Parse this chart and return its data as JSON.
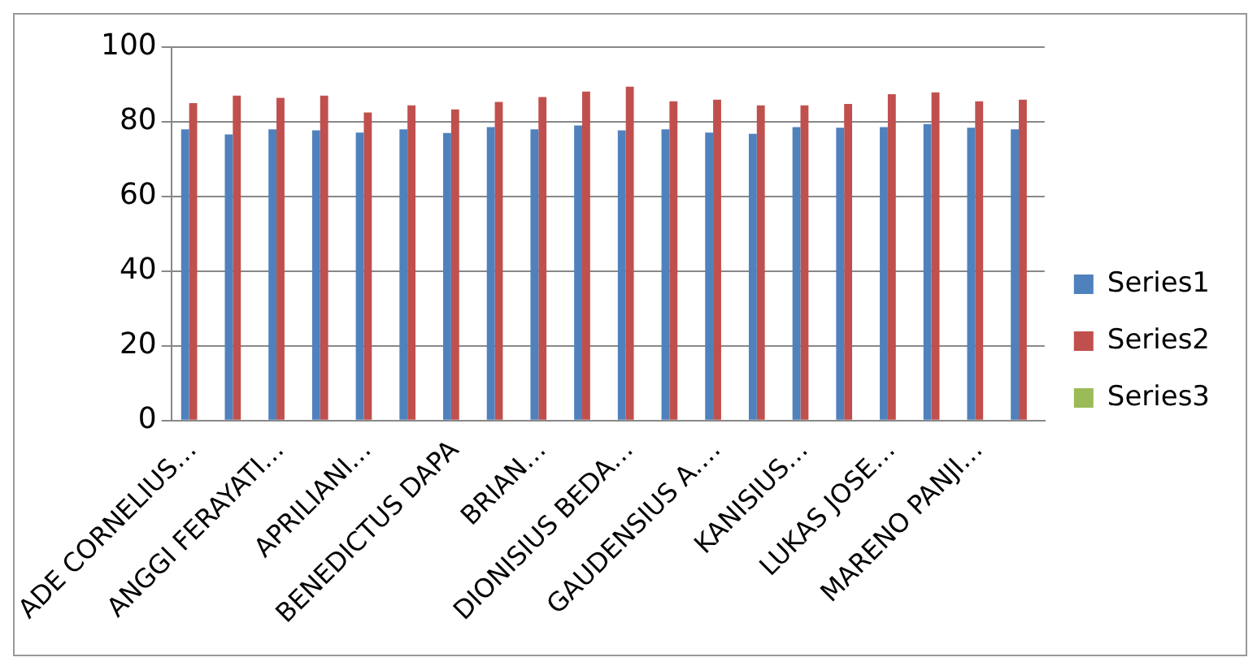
{
  "chart_data": {
    "type": "bar",
    "categories": [
      "ADE CORNELIUS…",
      null,
      "ANGGI FERAYATI…",
      null,
      "APRILIANI…",
      null,
      "BENEDICTUS DAPA",
      null,
      "BRIAN…",
      null,
      "DIONISIUS BEDA…",
      null,
      "GAUDENSIUS A.…",
      null,
      "KANISIUS…",
      null,
      "LUKAS JOSE…",
      null,
      "MARENO PANJI…",
      null
    ],
    "series": [
      {
        "name": "Series1",
        "color": "#4f81bd",
        "values": [
          78,
          76.6,
          78,
          77.7,
          77.1,
          78,
          77,
          78.6,
          78,
          79,
          77.7,
          78,
          77.1,
          76.8,
          78.6,
          78.4,
          78.6,
          79.4,
          78.4,
          78
        ]
      },
      {
        "name": "Series2",
        "color": "#c0504d",
        "values": [
          85,
          87,
          86.4,
          87,
          82.5,
          84.4,
          83.3,
          85.3,
          86.6,
          88.1,
          89.4,
          85.5,
          85.9,
          84.4,
          84.4,
          84.8,
          87.4,
          87.9,
          85.5,
          85.9
        ]
      },
      {
        "name": "Series3",
        "color": "#9bbb59",
        "values": [
          null,
          null,
          null,
          null,
          null,
          null,
          null,
          null,
          null,
          null,
          null,
          null,
          null,
          null,
          null,
          null,
          null,
          null,
          null,
          null
        ]
      }
    ],
    "ylim": [
      0,
      100
    ],
    "yticks": [
      0,
      20,
      40,
      60,
      80,
      100
    ],
    "grid": "y",
    "legend": "right"
  }
}
